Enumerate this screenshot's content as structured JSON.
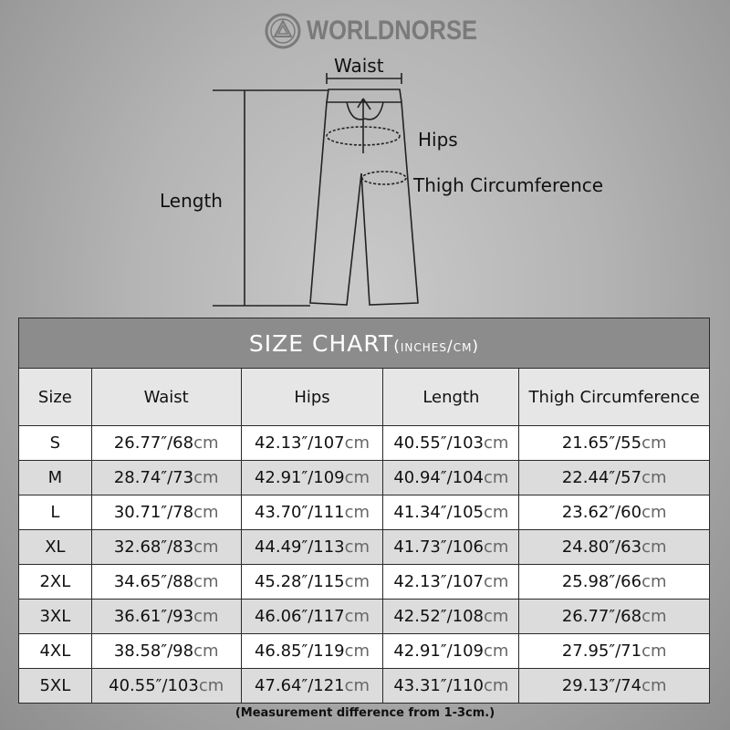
{
  "brand": {
    "name": "WORLDNORSE",
    "icon": "valknut-emblem-icon"
  },
  "diagram": {
    "labels": {
      "waist": "Waist",
      "hips": "Hips",
      "thigh": "Thigh Circumference",
      "length": "Length"
    }
  },
  "table": {
    "title": "SIZE CHART",
    "title_unit": "(inches/cm)",
    "headers": [
      "Size",
      "Waist",
      "Hips",
      "Length",
      "Thigh Circumference"
    ],
    "unit_cm": "cm",
    "rows": [
      {
        "size": "S",
        "cells": [
          [
            "26.77″/68",
            "cm"
          ],
          [
            "42.13″/107",
            "cm"
          ],
          [
            "40.55″/103",
            "cm"
          ],
          [
            "21.65″/55",
            "cm"
          ]
        ]
      },
      {
        "size": "M",
        "cells": [
          [
            "28.74″/73",
            "cm"
          ],
          [
            "42.91″/109",
            "cm"
          ],
          [
            "40.94″/104",
            "cm"
          ],
          [
            "22.44″/57",
            "cm"
          ]
        ]
      },
      {
        "size": "L",
        "cells": [
          [
            "30.71″/78",
            "cm"
          ],
          [
            "43.70″/111",
            "cm"
          ],
          [
            "41.34″/105",
            "cm"
          ],
          [
            "23.62″/60",
            "cm"
          ]
        ]
      },
      {
        "size": "XL",
        "cells": [
          [
            "32.68″/83",
            "cm"
          ],
          [
            "44.49″/113",
            "cm"
          ],
          [
            "41.73″/106",
            "cm"
          ],
          [
            "24.80″/63",
            "cm"
          ]
        ]
      },
      {
        "size": "2XL",
        "cells": [
          [
            "34.65″/88",
            "cm"
          ],
          [
            "45.28″/115",
            "cm"
          ],
          [
            "42.13″/107",
            "cm"
          ],
          [
            "25.98″/66",
            "cm"
          ]
        ]
      },
      {
        "size": "3XL",
        "cells": [
          [
            "36.61″/93",
            "cm"
          ],
          [
            "46.06″/117",
            "cm"
          ],
          [
            "42.52″/108",
            "cm"
          ],
          [
            "26.77″/68",
            "cm"
          ]
        ]
      },
      {
        "size": "4XL",
        "cells": [
          [
            "38.58″/98",
            "cm"
          ],
          [
            "46.85″/119",
            "cm"
          ],
          [
            "42.91″/109",
            "cm"
          ],
          [
            "27.95″/71",
            "cm"
          ]
        ]
      },
      {
        "size": "5XL",
        "cells": [
          [
            "40.55″/103",
            "cm"
          ],
          [
            "47.64″/121",
            "cm"
          ],
          [
            "43.31″/110",
            "cm"
          ],
          [
            "29.13″/74",
            "cm"
          ]
        ]
      }
    ],
    "note": "(Measurement difference from 1-3cm.)"
  }
}
